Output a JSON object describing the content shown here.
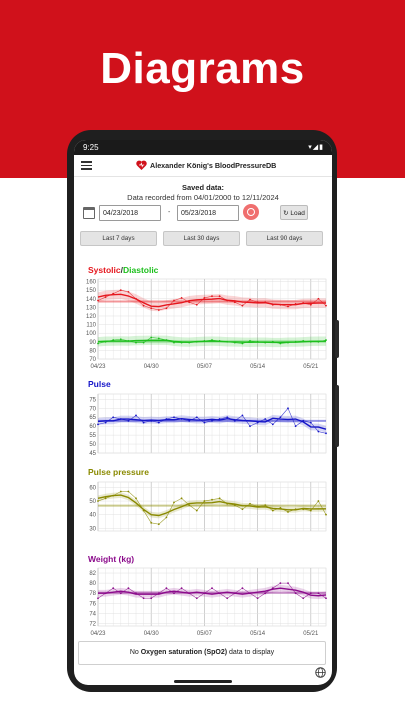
{
  "banner": {
    "title": "Diagrams"
  },
  "status": {
    "time": "9:25",
    "icons": "▾◢▮"
  },
  "app": {
    "title": "Alexander König's BloodPressureDB"
  },
  "saved": {
    "title": "Saved data:",
    "range": "Data recorded from 04/01/2000 to 12/11/2024"
  },
  "filter": {
    "from": "04/23/2018",
    "dash": "-",
    "to": "05/23/2018",
    "load_label": "Load",
    "load_icon": "↻"
  },
  "ranges": [
    "Last 7 days",
    "Last 30 days",
    "Last 90 days"
  ],
  "x_ticks": [
    "04/23",
    "04/30",
    "05/07",
    "05/14",
    "05/21"
  ],
  "nodata": {
    "prefix": "No",
    "bold": "Oxygen saturation (SpO2)",
    "suffix": "data to display"
  },
  "colors": {
    "brand": "#d0111b",
    "systolic": "#e5161d",
    "diastolic": "#1cbf1c",
    "pulse": "#1515c8",
    "pulse_pressure": "#8a8a00",
    "weight": "#8b0a8b"
  },
  "chart_data": [
    {
      "type": "line",
      "title_parts": [
        "Systolic",
        "/",
        "Diastolic"
      ],
      "x": [
        "04/23",
        "04/24",
        "04/25",
        "04/26",
        "04/27",
        "04/28",
        "04/29",
        "04/30",
        "05/01",
        "05/02",
        "05/03",
        "05/04",
        "05/05",
        "05/06",
        "05/07",
        "05/08",
        "05/09",
        "05/10",
        "05/11",
        "05/12",
        "05/13",
        "05/14",
        "05/15",
        "05/16",
        "05/17",
        "05/18",
        "05/19",
        "05/20",
        "05/21",
        "05/22",
        "05/23"
      ],
      "x_tick_labels": [
        "04/23",
        "04/30",
        "05/07",
        "05/14",
        "05/21"
      ],
      "yticks": [
        70,
        80,
        90,
        100,
        110,
        120,
        130,
        140,
        150,
        160
      ],
      "ylim": [
        70,
        163
      ],
      "series": [
        {
          "name": "Systolic",
          "color": "#e5161d",
          "values": [
            138,
            142,
            146,
            150,
            148,
            140,
            132,
            129,
            127,
            129,
            138,
            141,
            136,
            133,
            141,
            143,
            143,
            138,
            136,
            132,
            139,
            136,
            136,
            133,
            133,
            131,
            134,
            135,
            133,
            140,
            132
          ]
        },
        {
          "name": "Diastolic",
          "color": "#1cbf1c",
          "values": [
            88,
            90,
            92,
            93,
            91,
            89,
            89,
            95,
            94,
            92,
            89,
            89,
            89,
            90,
            91,
            92,
            91,
            90,
            89,
            88,
            91,
            90,
            89,
            90,
            88,
            89,
            90,
            91,
            90,
            90,
            92
          ]
        }
      ]
    },
    {
      "type": "line",
      "title": "Pulse",
      "x_tick_labels": [
        "04/23",
        "04/30",
        "05/07",
        "05/14",
        "05/21"
      ],
      "yticks": [
        45,
        50,
        55,
        60,
        65,
        70,
        75
      ],
      "ylim": [
        45,
        78
      ],
      "series": [
        {
          "name": "Pulse",
          "color": "#1515c8",
          "values": [
            61,
            62,
            65,
            64,
            63,
            66,
            62,
            63,
            62,
            64,
            65,
            64,
            63,
            65,
            62,
            63,
            64,
            65,
            63,
            66,
            60,
            62,
            64,
            61,
            65,
            70,
            60,
            63,
            62,
            57,
            56
          ]
        }
      ]
    },
    {
      "type": "line",
      "title": "Pulse pressure",
      "x_tick_labels": [
        "04/23",
        "04/30",
        "05/07",
        "05/14",
        "05/21"
      ],
      "yticks": [
        30,
        40,
        50,
        60
      ],
      "ylim": [
        28,
        64
      ],
      "series": [
        {
          "name": "Pulse pressure",
          "color": "#8a8a00",
          "values": [
            50,
            52,
            54,
            57,
            57,
            52,
            43,
            34,
            33,
            38,
            49,
            52,
            47,
            43,
            50,
            51,
            52,
            48,
            47,
            44,
            48,
            46,
            47,
            43,
            45,
            42,
            44,
            44,
            43,
            50,
            40
          ]
        }
      ]
    },
    {
      "type": "line",
      "title": "Weight (kg)",
      "x_tick_labels": [
        "04/23",
        "04/30",
        "05/07",
        "05/14",
        "05/21"
      ],
      "yticks": [
        72,
        74,
        76,
        78,
        80,
        82
      ],
      "ylim": [
        71.5,
        83
      ],
      "series": [
        {
          "name": "Weight (kg)",
          "color": "#8b0a8b",
          "values": [
            77,
            78,
            79,
            78,
            79,
            78,
            77,
            77,
            78,
            79,
            78,
            79,
            78,
            77,
            78,
            79,
            78,
            77,
            78,
            79,
            78,
            77,
            78,
            79,
            80,
            80,
            78,
            77,
            78,
            78,
            77
          ]
        }
      ]
    }
  ]
}
